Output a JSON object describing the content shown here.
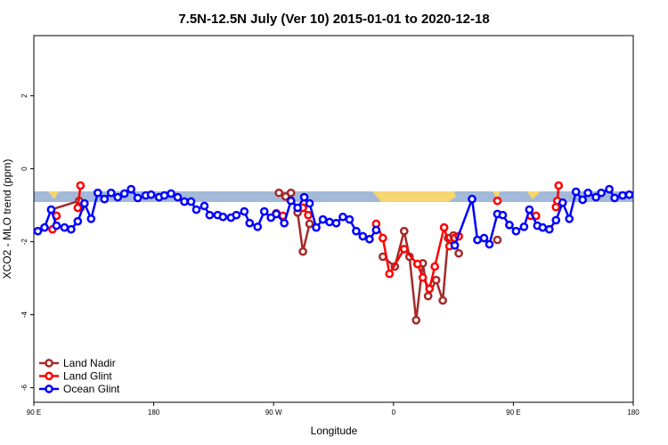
{
  "chart_data": {
    "type": "line",
    "title": "7.5N-12.5N July (Ver 10)   2015-01-01 to 2020-12-18",
    "x_label": "Longitude",
    "y_label": "XCO2 - MLO trend (ppm)",
    "xlim": [
      90,
      540
    ],
    "ylim": [
      -6.4,
      3.65
    ],
    "xticks": [
      {
        "value": 90,
        "label": "90 E"
      },
      180,
      {
        "value": 270,
        "label": "90 W"
      },
      {
        "value": 360,
        "label": "0"
      },
      {
        "value": 450,
        "label": "90 E"
      },
      180
    ],
    "yticks": [
      -6,
      -4,
      -2,
      0,
      2
    ],
    "legend": "bottom-left",
    "series": [
      {
        "name": "Land Nadir",
        "color": "#a52a2a",
        "x": [
          103,
          124,
          125,
          null,
          274,
          279,
          283,
          288,
          292,
          297,
          null,
          352,
          361,
          368,
          372,
          377,
          382,
          386,
          392,
          397,
          401,
          405,
          409,
          null,
          438
        ],
        "values": [
          -1.12,
          -0.88,
          -1.07,
          null,
          -0.66,
          -0.76,
          -0.66,
          -1.2,
          -2.27,
          -1.51,
          null,
          -2.41,
          -2.68,
          -1.71,
          -2.41,
          -4.15,
          -2.59,
          -3.49,
          -3.05,
          -3.61,
          -1.9,
          -1.83,
          -2.32,
          null,
          -1.95
        ]
      },
      {
        "name": "Land Glint",
        "color": "#ff0000",
        "x": [
          104,
          107,
          null,
          123,
          125,
          null,
          272,
          277,
          null,
          292,
          296,
          null,
          347,
          352,
          357,
          368,
          378,
          382,
          387,
          391,
          398,
          402,
          406,
          409,
          null,
          438,
          null,
          463,
          467,
          null,
          482,
          483,
          484
        ],
        "values": [
          -1.66,
          -1.29,
          null,
          -1.07,
          -0.46,
          null,
          -1.22,
          -1.29,
          null,
          -1.07,
          -1.27,
          null,
          -1.51,
          -1.9,
          -2.88,
          -2.2,
          -2.61,
          -2.98,
          -3.29,
          -2.68,
          -1.61,
          -2.12,
          -1.9,
          -1.85,
          null,
          -0.88,
          null,
          -1.29,
          -1.29,
          null,
          -1.05,
          -0.88,
          -0.46
        ]
      },
      {
        "name": "Ocean Glint",
        "color": "#0000ff",
        "x": [
          93,
          98,
          103,
          107,
          113,
          118,
          123,
          128,
          133,
          138,
          143,
          148,
          153,
          158,
          163,
          168,
          174,
          178,
          184,
          188,
          193,
          198,
          203,
          208,
          212,
          218,
          222,
          228,
          232,
          238,
          242,
          248,
          252,
          258,
          263,
          268,
          272,
          278,
          283,
          288,
          293,
          297,
          302,
          307,
          312,
          317,
          322,
          327,
          332,
          337,
          342,
          347,
          null,
          406,
          419,
          423,
          428,
          432,
          438,
          442,
          447,
          452,
          458,
          462,
          468,
          472,
          477,
          482,
          487,
          492,
          497,
          502,
          506,
          512,
          516,
          522,
          526,
          532,
          537
        ],
        "values": [
          -1.71,
          -1.61,
          -1.12,
          -1.56,
          -1.61,
          -1.66,
          -1.44,
          -0.95,
          -1.37,
          -0.66,
          -0.83,
          -0.66,
          -0.78,
          -0.68,
          -0.56,
          -0.8,
          -0.73,
          -0.71,
          -0.78,
          -0.73,
          -0.68,
          -0.78,
          -0.9,
          -0.9,
          -1.12,
          -1.02,
          -1.27,
          -1.27,
          -1.32,
          -1.34,
          -1.27,
          -1.17,
          -1.49,
          -1.59,
          -1.17,
          -1.34,
          -1.24,
          -1.49,
          -0.88,
          -1.07,
          -0.78,
          -0.95,
          -1.61,
          -1.39,
          -1.46,
          -1.49,
          -1.32,
          -1.39,
          -1.71,
          -1.85,
          -1.93,
          -1.68,
          null,
          -2.1,
          -0.83,
          -1.95,
          -1.9,
          -2.07,
          -1.24,
          -1.27,
          -1.54,
          -1.71,
          -1.59,
          -1.12,
          -1.56,
          -1.61,
          -1.66,
          -1.41,
          -0.93,
          -1.37,
          -0.63,
          -0.85,
          -0.66,
          -0.78,
          -0.66,
          -0.56,
          -0.8,
          -0.73,
          -0.71
        ]
      }
    ]
  }
}
